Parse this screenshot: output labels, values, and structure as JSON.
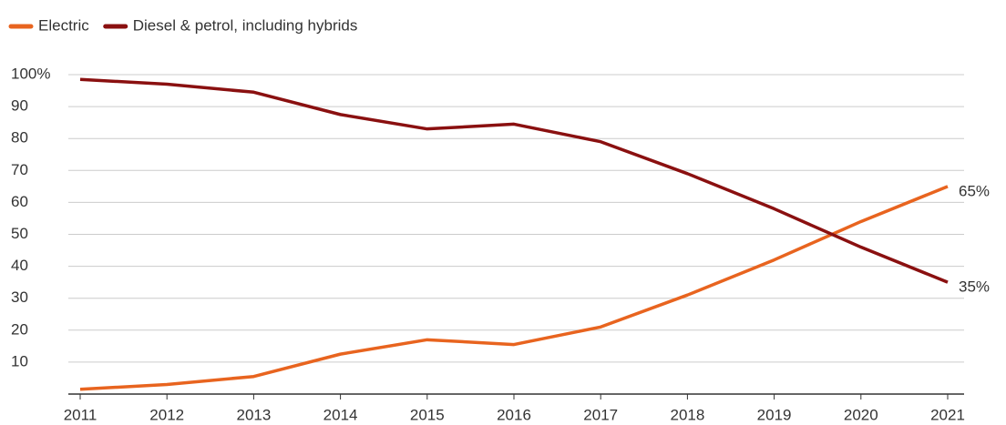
{
  "chart_data": {
    "type": "line",
    "x": [
      2011,
      2012,
      2013,
      2014,
      2015,
      2016,
      2017,
      2018,
      2019,
      2020,
      2021
    ],
    "xlim": [
      2011,
      2021
    ],
    "xticks": [
      2011,
      2012,
      2013,
      2014,
      2015,
      2016,
      2017,
      2018,
      2019,
      2020,
      2021
    ],
    "ylim": [
      0,
      100
    ],
    "yticks": [
      {
        "value": 100,
        "label": "100%"
      },
      90,
      80,
      70,
      60,
      50,
      40,
      30,
      20,
      10
    ],
    "grid": true,
    "legend": "top-left",
    "series": [
      {
        "name": "Electric",
        "color": "#e8641f",
        "values": [
          1.5,
          3,
          5.5,
          12.5,
          17,
          15.5,
          21,
          31,
          42,
          54,
          65
        ],
        "value_labels": [
          null,
          null,
          null,
          null,
          null,
          null,
          null,
          null,
          null,
          null,
          "65%"
        ]
      },
      {
        "name": "Diesel & petrol, including hybrids",
        "color": "#8a1010",
        "values": [
          98.5,
          97,
          94.5,
          87.5,
          83,
          84.5,
          79,
          69,
          58,
          46,
          35
        ],
        "value_labels": [
          null,
          null,
          null,
          null,
          null,
          null,
          null,
          null,
          null,
          null,
          "35%"
        ]
      }
    ]
  }
}
